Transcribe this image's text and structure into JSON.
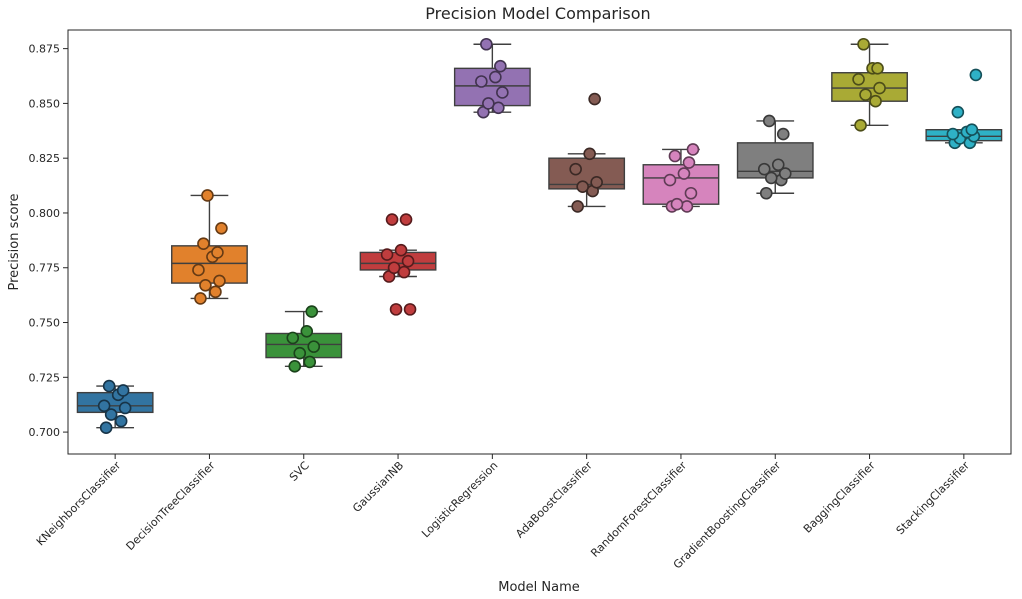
{
  "chart_data": {
    "type": "box",
    "title": "Precision Model Comparison",
    "xlabel": "Model Name",
    "ylabel": "Precision score",
    "ylim": [
      0.69,
      0.8835
    ],
    "yticks": [
      "0.700",
      "0.725",
      "0.750",
      "0.775",
      "0.800",
      "0.825",
      "0.850",
      "0.875"
    ],
    "series": [
      {
        "name": "KNeighborsClassifier",
        "color": "#3274a1",
        "whisker_low": 0.702,
        "q1": 0.709,
        "median": 0.712,
        "q3": 0.718,
        "whisker_high": 0.721,
        "points": [
          0.702,
          0.705,
          0.708,
          0.711,
          0.712,
          0.717,
          0.719,
          0.721
        ],
        "outliers": []
      },
      {
        "name": "DecisionTreeClassifier",
        "color": "#e1812c",
        "whisker_low": 0.761,
        "q1": 0.768,
        "median": 0.777,
        "q3": 0.785,
        "whisker_high": 0.808,
        "points": [
          0.761,
          0.764,
          0.767,
          0.769,
          0.774,
          0.78,
          0.782,
          0.786,
          0.793,
          0.808
        ],
        "outliers": []
      },
      {
        "name": "SVC",
        "color": "#3a923a",
        "whisker_low": 0.73,
        "q1": 0.734,
        "median": 0.74,
        "q3": 0.745,
        "whisker_high": 0.755,
        "points": [
          0.73,
          0.732,
          0.736,
          0.739,
          0.743,
          0.746,
          0.755
        ],
        "outliers": []
      },
      {
        "name": "GaussianNB",
        "color": "#c03d3e",
        "whisker_low": 0.771,
        "q1": 0.774,
        "median": 0.777,
        "q3": 0.782,
        "whisker_high": 0.783,
        "points": [
          0.771,
          0.773,
          0.775,
          0.778,
          0.781,
          0.783
        ],
        "outliers": [
          0.797,
          0.797,
          0.756,
          0.756
        ]
      },
      {
        "name": "LogisticRegression",
        "color": "#9372b2",
        "whisker_low": 0.846,
        "q1": 0.849,
        "median": 0.858,
        "q3": 0.866,
        "whisker_high": 0.877,
        "points": [
          0.846,
          0.848,
          0.85,
          0.855,
          0.86,
          0.862,
          0.867,
          0.877
        ],
        "outliers": []
      },
      {
        "name": "AdaBoostClassifier",
        "color": "#845b53",
        "whisker_low": 0.803,
        "q1": 0.811,
        "median": 0.813,
        "q3": 0.825,
        "whisker_high": 0.827,
        "points": [
          0.803,
          0.81,
          0.812,
          0.814,
          0.82,
          0.827
        ],
        "outliers": [
          0.852
        ]
      },
      {
        "name": "RandomForestClassifier",
        "color": "#d684bd",
        "whisker_low": 0.803,
        "q1": 0.804,
        "median": 0.816,
        "q3": 0.822,
        "whisker_high": 0.829,
        "points": [
          0.803,
          0.803,
          0.804,
          0.809,
          0.815,
          0.818,
          0.823,
          0.826,
          0.829
        ],
        "outliers": []
      },
      {
        "name": "GradientBoostingClassifier",
        "color": "#7f7f7f",
        "whisker_low": 0.809,
        "q1": 0.816,
        "median": 0.819,
        "q3": 0.832,
        "whisker_high": 0.842,
        "points": [
          0.809,
          0.815,
          0.816,
          0.818,
          0.82,
          0.822,
          0.836,
          0.842
        ],
        "outliers": []
      },
      {
        "name": "BaggingClassifier",
        "color": "#a9aa35",
        "whisker_low": 0.84,
        "q1": 0.851,
        "median": 0.857,
        "q3": 0.864,
        "whisker_high": 0.877,
        "points": [
          0.84,
          0.851,
          0.854,
          0.857,
          0.861,
          0.866,
          0.866,
          0.877
        ],
        "outliers": []
      },
      {
        "name": "StackingClassifier",
        "color": "#2eb1c6",
        "whisker_low": 0.832,
        "q1": 0.833,
        "median": 0.835,
        "q3": 0.838,
        "whisker_high": 0.838,
        "points": [
          0.832,
          0.832,
          0.834,
          0.835,
          0.836,
          0.837,
          0.838
        ],
        "outliers": [
          0.846,
          0.863
        ]
      }
    ]
  }
}
